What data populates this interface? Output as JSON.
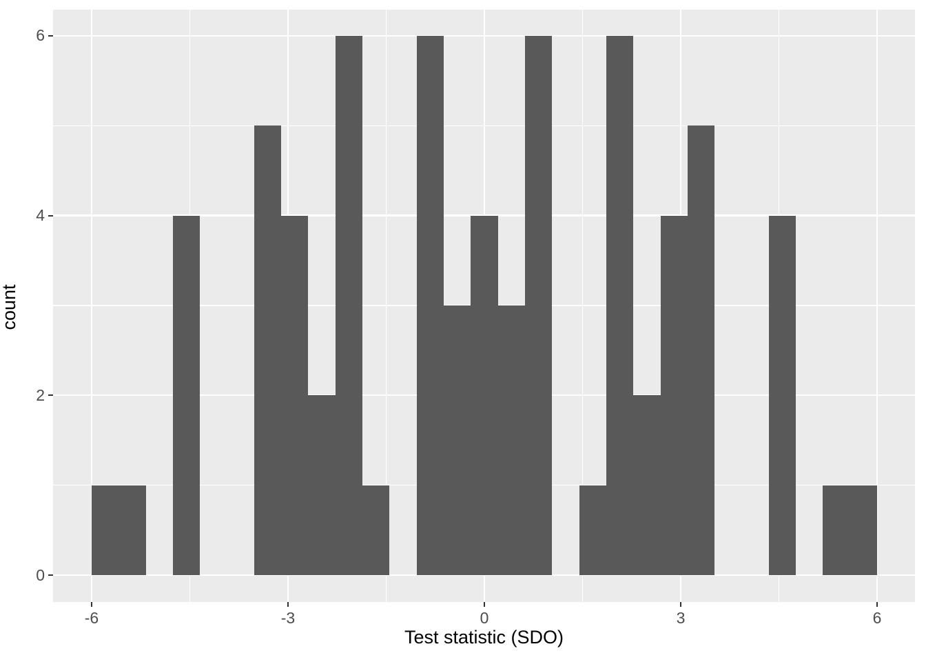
{
  "figure": {
    "background_color": "#FFFFFF",
    "panel_background_color": "#EBEBEB",
    "grid_color": "#FFFFFF",
    "bar_fill_color": "#595959",
    "tick_label_color": "#4D4D4D",
    "axis_title_color": "#000000",
    "tick_mark_color": "#333333"
  },
  "chart_data": {
    "type": "bar",
    "subtype": "histogram",
    "title": "",
    "xlabel": "Test statistic (SDO)",
    "ylabel": "count",
    "x_major_ticks": [
      -6,
      -3,
      0,
      3,
      6
    ],
    "x_tick_labels": [
      "-6",
      "-3",
      "0",
      "3",
      "6"
    ],
    "x_minor_ticks": [
      -4.5,
      -1.5,
      1.5,
      4.5
    ],
    "y_major_ticks": [
      0,
      2,
      4,
      6
    ],
    "y_tick_labels": [
      "0",
      "2",
      "4",
      "6"
    ],
    "y_minor_ticks": [
      1,
      3,
      5
    ],
    "xlim": [
      -6.6,
      6.6
    ],
    "ylim": [
      -0.3,
      6.3
    ],
    "bin_start": -6.0,
    "bin_width": 0.413793,
    "counts": [
      1,
      1,
      0,
      4,
      0,
      0,
      5,
      4,
      2,
      6,
      1,
      0,
      6,
      3,
      4,
      3,
      6,
      0,
      1,
      6,
      2,
      4,
      5,
      0,
      0,
      4,
      0,
      1,
      1
    ],
    "total_observations": 70,
    "grid": true,
    "legend_position": "none"
  }
}
